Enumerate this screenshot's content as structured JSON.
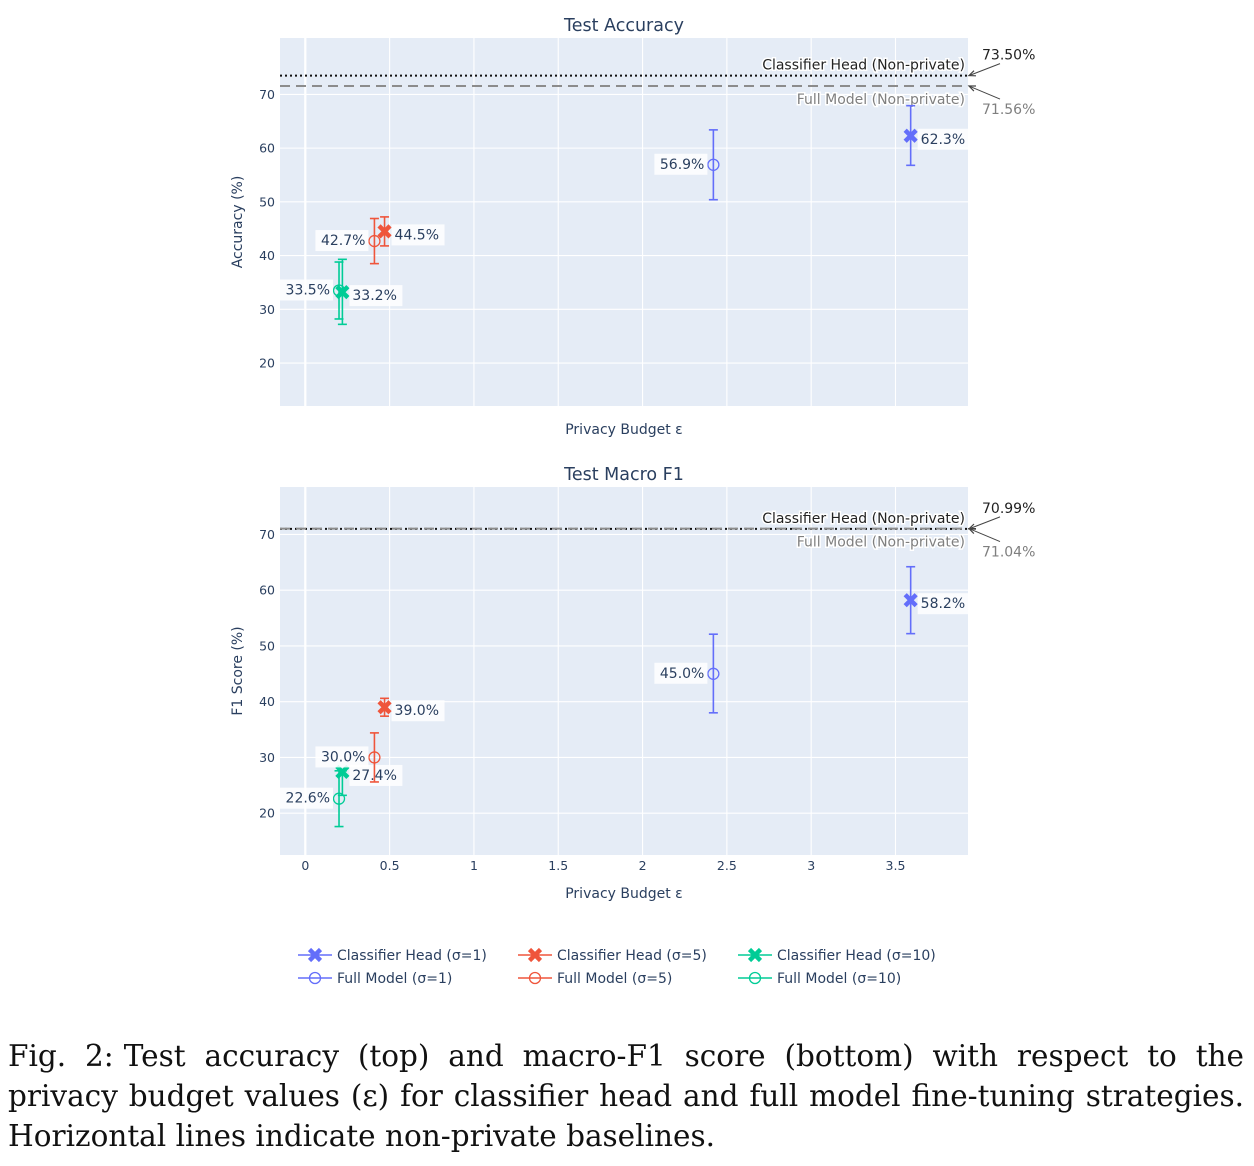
{
  "chart_data": [
    {
      "type": "scatter",
      "title": "Test Accuracy",
      "xlabel": "Privacy Budget ε",
      "ylabel": "Accuracy (%)",
      "xlim": [
        -0.15,
        3.93
      ],
      "ylim": [
        12,
        80.5
      ],
      "xticks": [],
      "yticks": [
        20,
        30,
        40,
        50,
        60,
        70
      ],
      "grid": true,
      "series": [
        {
          "name": "Classifier Head (σ=1)",
          "color": "#636efa",
          "marker": "x",
          "points": [
            {
              "x": 3.59,
              "y": 62.3,
              "low": 56.8,
              "high": 67.9,
              "label": "62.3%",
              "label_side": "right"
            }
          ]
        },
        {
          "name": "Classifier Head (σ=5)",
          "color": "#ef553b",
          "marker": "x",
          "points": [
            {
              "x": 0.47,
              "y": 44.5,
              "low": 41.8,
              "high": 47.2,
              "label": "44.5%",
              "label_side": "right"
            }
          ]
        },
        {
          "name": "Classifier Head (σ=10)",
          "color": "#00cc96",
          "marker": "x",
          "points": [
            {
              "x": 0.22,
              "y": 33.2,
              "low": 27.2,
              "high": 39.3,
              "label": "33.2%",
              "label_side": "right"
            }
          ]
        },
        {
          "name": "Full Model (σ=1)",
          "color": "#636efa",
          "marker": "circle-open",
          "points": [
            {
              "x": 2.42,
              "y": 56.9,
              "low": 50.4,
              "high": 63.4,
              "label": "56.9%",
              "label_side": "left"
            }
          ]
        },
        {
          "name": "Full Model (σ=5)",
          "color": "#ef553b",
          "marker": "circle-open",
          "points": [
            {
              "x": 0.41,
              "y": 42.7,
              "low": 38.5,
              "high": 46.9,
              "label": "42.7%",
              "label_side": "left"
            }
          ]
        },
        {
          "name": "Full Model (σ=10)",
          "color": "#00cc96",
          "marker": "circle-open",
          "points": [
            {
              "x": 0.2,
              "y": 33.5,
              "low": 28.2,
              "high": 38.8,
              "label": "33.5%",
              "label_side": "left"
            }
          ]
        }
      ],
      "baselines": [
        {
          "name": "Classifier Head (Non-private)",
          "value": 73.5,
          "value_label": "73.50%",
          "style": "dotted",
          "color": "#111111",
          "label_color": "#222222",
          "value_position": "above",
          "text_position": "above"
        },
        {
          "name": "Full Model (Non-private)",
          "value": 71.56,
          "value_label": "71.56%",
          "style": "dashed",
          "color": "#8c8c8c",
          "label_color": "#7f7f7f",
          "value_position": "below",
          "text_position": "below"
        }
      ]
    },
    {
      "type": "scatter",
      "title": "Test Macro F1",
      "xlabel": "Privacy Budget ε",
      "ylabel": "F1 Score (%)",
      "xlim": [
        -0.15,
        3.93
      ],
      "ylim": [
        12.5,
        78.5
      ],
      "xticks": [
        0,
        0.5,
        1,
        1.5,
        2,
        2.5,
        3,
        3.5
      ],
      "yticks": [
        20,
        30,
        40,
        50,
        60,
        70
      ],
      "grid": true,
      "series": [
        {
          "name": "Classifier Head (σ=1)",
          "color": "#636efa",
          "marker": "x",
          "points": [
            {
              "x": 3.59,
              "y": 58.2,
              "low": 52.2,
              "high": 64.2,
              "label": "58.2%",
              "label_side": "right"
            }
          ]
        },
        {
          "name": "Classifier Head (σ=5)",
          "color": "#ef553b",
          "marker": "x",
          "points": [
            {
              "x": 0.47,
              "y": 39.0,
              "low": 37.4,
              "high": 40.6,
              "label": "39.0%",
              "label_side": "right"
            }
          ]
        },
        {
          "name": "Classifier Head (σ=10)",
          "color": "#00cc96",
          "marker": "x",
          "points": [
            {
              "x": 0.22,
              "y": 27.4,
              "low": 23.2,
              "high": 27.6,
              "label": "27.4%",
              "label_side": "right"
            }
          ]
        },
        {
          "name": "Full Model (σ=1)",
          "color": "#636efa",
          "marker": "circle-open",
          "points": [
            {
              "x": 2.42,
              "y": 45.0,
              "low": 38.0,
              "high": 52.1,
              "label": "45.0%",
              "label_side": "left"
            }
          ]
        },
        {
          "name": "Full Model (σ=5)",
          "color": "#ef553b",
          "marker": "circle-open",
          "points": [
            {
              "x": 0.41,
              "y": 30.0,
              "low": 25.6,
              "high": 34.4,
              "label": "30.0%",
              "label_side": "left"
            }
          ]
        },
        {
          "name": "Full Model (σ=10)",
          "color": "#00cc96",
          "marker": "circle-open",
          "points": [
            {
              "x": 0.2,
              "y": 22.6,
              "low": 17.6,
              "high": 27.6,
              "label": "22.6%",
              "label_side": "left"
            }
          ]
        }
      ],
      "baselines": [
        {
          "name": "Classifier Head (Non-private)",
          "value": 70.99,
          "value_label": "70.99%",
          "style": "dotted",
          "color": "#111111",
          "label_color": "#222222",
          "value_position": "above",
          "text_position": "above"
        },
        {
          "name": "Full Model (Non-private)",
          "value": 71.04,
          "value_label": "71.04%",
          "style": "dashed",
          "color": "#8c8c8c",
          "label_color": "#7f7f7f",
          "value_position": "below",
          "text_position": "below"
        }
      ]
    }
  ],
  "legend": {
    "placement": "bottom",
    "items": [
      {
        "label": "Classifier Head (σ=1)",
        "color": "#636efa",
        "marker": "x"
      },
      {
        "label": "Classifier Head (σ=5)",
        "color": "#ef553b",
        "marker": "x"
      },
      {
        "label": "Classifier Head (σ=10)",
        "color": "#00cc96",
        "marker": "x"
      },
      {
        "label": "Full Model (σ=1)",
        "color": "#636efa",
        "marker": "circle-open"
      },
      {
        "label": "Full Model (σ=5)",
        "color": "#ef553b",
        "marker": "circle-open"
      },
      {
        "label": "Full Model (σ=10)",
        "color": "#00cc96",
        "marker": "circle-open"
      }
    ]
  },
  "caption": {
    "label": "Fig. 2:",
    "text": "Test accuracy (top) and macro-F1 score (bottom) with respect to the privacy budget values (ε) for classifier head and full model fine-tuning strategies. Horizontal lines indicate non-private baselines."
  }
}
